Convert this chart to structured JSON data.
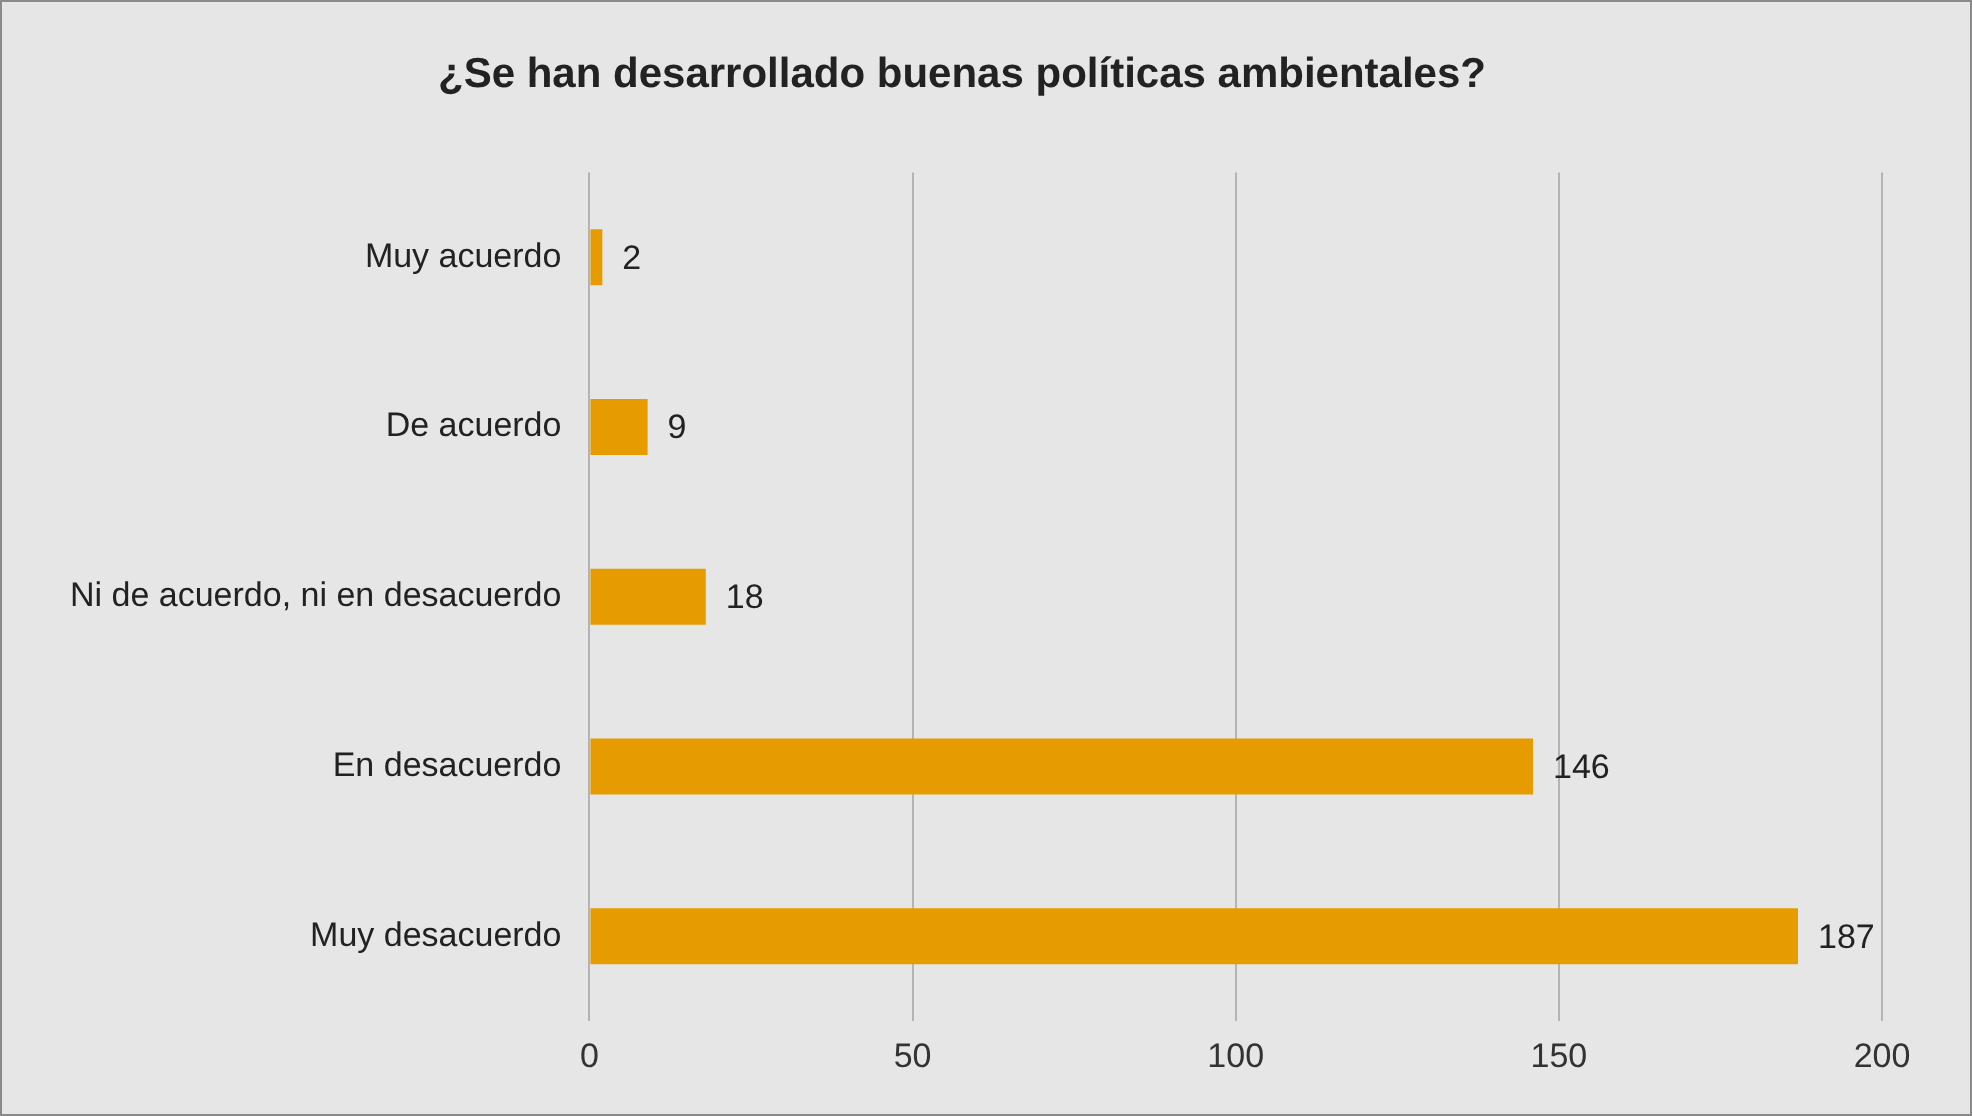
{
  "chart_data": {
    "type": "bar",
    "orientation": "horizontal",
    "title": "¿Se han desarrollado buenas políticas ambientales?",
    "categories": [
      "Muy acuerdo",
      "De acuerdo",
      "Ni de acuerdo, ni en desacuerdo",
      "En desacuerdo",
      "Muy desacuerdo"
    ],
    "values": [
      2,
      9,
      18,
      146,
      187
    ],
    "color": "#e69c00",
    "xlim": [
      0,
      200
    ],
    "xticks": [
      0,
      50,
      100,
      150,
      200
    ],
    "grid": "x",
    "data_labels": true,
    "legend": false
  }
}
